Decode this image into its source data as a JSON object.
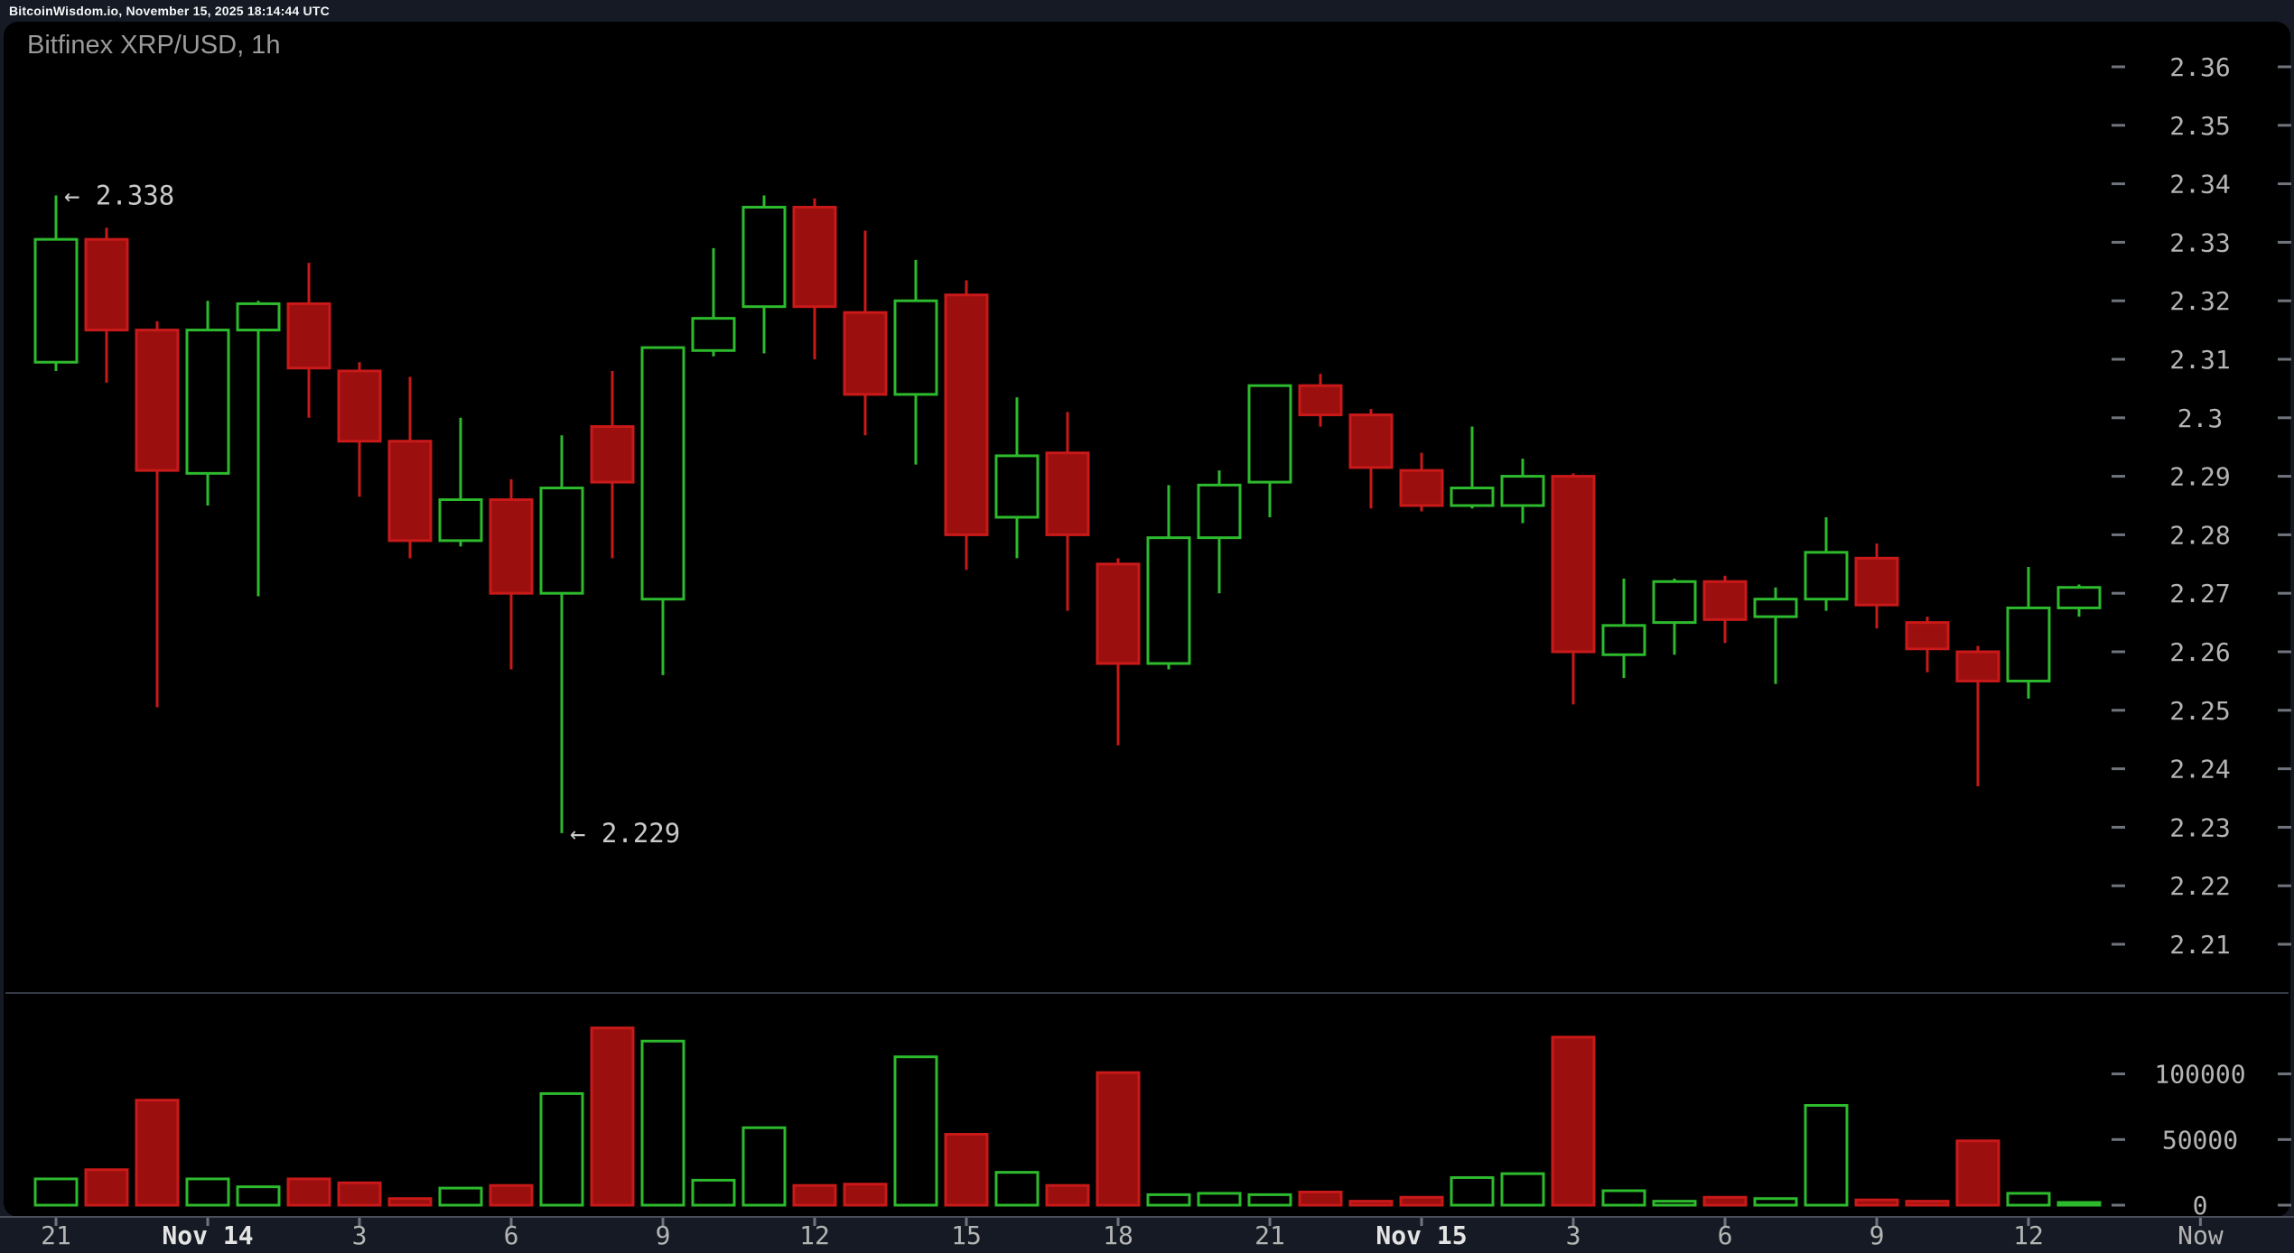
{
  "header": {
    "status_text": "BitcoinWisdom.io, November 15, 2025 18:14:44 UTC"
  },
  "chart": {
    "title": "Bitfinex XRP/USD, 1h"
  },
  "colors": {
    "page_bg": "#151a24",
    "panel_bg": "#000000",
    "green": "#2dba2d",
    "red": "#c91919",
    "red_fill": "#9b0f0f",
    "axis_text": "#b4b4b4",
    "axis_text_strong": "#e4e4e4",
    "tick_dash": "#70747c",
    "annotation_text": "#c9c9c9",
    "strip_line": "#4a4e58",
    "pane_divider": "#343943"
  },
  "chart_data": {
    "type": "candlestick+volume",
    "title": "Bitfinex XRP/USD, 1h",
    "interval": "1h",
    "price_axis": {
      "range": [
        2.21,
        2.36
      ],
      "ticks": [
        {
          "label": "2.36",
          "value": 2.36
        },
        {
          "label": "2.35",
          "value": 2.35
        },
        {
          "label": "2.34",
          "value": 2.34
        },
        {
          "label": "2.33",
          "value": 2.33
        },
        {
          "label": "2.32",
          "value": 2.32
        },
        {
          "label": "2.31",
          "value": 2.31
        },
        {
          "label": "2.3",
          "value": 2.3
        },
        {
          "label": "2.29",
          "value": 2.29
        },
        {
          "label": "2.28",
          "value": 2.28
        },
        {
          "label": "2.27",
          "value": 2.27
        },
        {
          "label": "2.26",
          "value": 2.26
        },
        {
          "label": "2.25",
          "value": 2.25
        },
        {
          "label": "2.24",
          "value": 2.24
        },
        {
          "label": "2.23",
          "value": 2.23
        },
        {
          "label": "2.22",
          "value": 2.22
        },
        {
          "label": "2.21",
          "value": 2.21
        }
      ]
    },
    "volume_axis": {
      "range": [
        0,
        100000
      ],
      "ticks": [
        {
          "label": "100000",
          "value": 100000
        },
        {
          "label": "50000",
          "value": 50000
        },
        {
          "label": "0",
          "value": 0
        }
      ]
    },
    "time_axis": {
      "ticks": [
        {
          "label": "21",
          "i": 0
        },
        {
          "label": "Nov 14",
          "i": 3,
          "strong": true
        },
        {
          "label": "3",
          "i": 6
        },
        {
          "label": "6",
          "i": 9
        },
        {
          "label": "9",
          "i": 12
        },
        {
          "label": "12",
          "i": 15
        },
        {
          "label": "15",
          "i": 18
        },
        {
          "label": "18",
          "i": 21
        },
        {
          "label": "21",
          "i": 24
        },
        {
          "label": "Nov 15",
          "i": 27,
          "strong": true
        },
        {
          "label": "3",
          "i": 30
        },
        {
          "label": "6",
          "i": 33
        },
        {
          "label": "9",
          "i": 36
        },
        {
          "label": "12",
          "i": 39
        },
        {
          "label": "Now",
          "i": 42.4
        }
      ]
    },
    "annotations": [
      {
        "text": "← 2.338",
        "price": 2.338,
        "candle": 0
      },
      {
        "text": "← 2.229",
        "price": 2.229,
        "candle": 10
      }
    ],
    "candles": [
      {
        "o": 2.3095,
        "h": 2.338,
        "l": 2.308,
        "c": 2.3305,
        "v": 20000
      },
      {
        "o": 2.3305,
        "h": 2.3325,
        "l": 2.306,
        "c": 2.315,
        "v": 27000
      },
      {
        "o": 2.315,
        "h": 2.3165,
        "l": 2.2505,
        "c": 2.291,
        "v": 80000
      },
      {
        "o": 2.2905,
        "h": 2.32,
        "l": 2.285,
        "c": 2.315,
        "v": 20000
      },
      {
        "o": 2.315,
        "h": 2.32,
        "l": 2.2695,
        "c": 2.3195,
        "v": 14000
      },
      {
        "o": 2.3195,
        "h": 2.3265,
        "l": 2.3,
        "c": 2.3085,
        "v": 20000
      },
      {
        "o": 2.308,
        "h": 2.3095,
        "l": 2.2865,
        "c": 2.296,
        "v": 17000
      },
      {
        "o": 2.296,
        "h": 2.307,
        "l": 2.276,
        "c": 2.279,
        "v": 5000
      },
      {
        "o": 2.279,
        "h": 2.3,
        "l": 2.278,
        "c": 2.286,
        "v": 13000
      },
      {
        "o": 2.286,
        "h": 2.2895,
        "l": 2.257,
        "c": 2.27,
        "v": 15000
      },
      {
        "o": 2.27,
        "h": 2.297,
        "l": 2.229,
        "c": 2.288,
        "v": 85000
      },
      {
        "o": 2.2985,
        "h": 2.308,
        "l": 2.276,
        "c": 2.289,
        "v": 135000
      },
      {
        "o": 2.269,
        "h": 2.312,
        "l": 2.256,
        "c": 2.312,
        "v": 125000
      },
      {
        "o": 2.3115,
        "h": 2.329,
        "l": 2.3105,
        "c": 2.317,
        "v": 19000
      },
      {
        "o": 2.319,
        "h": 2.338,
        "l": 2.311,
        "c": 2.336,
        "v": 59000
      },
      {
        "o": 2.336,
        "h": 2.3375,
        "l": 2.31,
        "c": 2.319,
        "v": 15000
      },
      {
        "o": 2.318,
        "h": 2.332,
        "l": 2.297,
        "c": 2.304,
        "v": 16000
      },
      {
        "o": 2.304,
        "h": 2.327,
        "l": 2.292,
        "c": 2.32,
        "v": 113000
      },
      {
        "o": 2.321,
        "h": 2.3235,
        "l": 2.274,
        "c": 2.28,
        "v": 54000
      },
      {
        "o": 2.283,
        "h": 2.3035,
        "l": 2.276,
        "c": 2.2935,
        "v": 25000
      },
      {
        "o": 2.294,
        "h": 2.301,
        "l": 2.267,
        "c": 2.28,
        "v": 15000
      },
      {
        "o": 2.275,
        "h": 2.276,
        "l": 2.244,
        "c": 2.258,
        "v": 101000
      },
      {
        "o": 2.258,
        "h": 2.2885,
        "l": 2.257,
        "c": 2.2795,
        "v": 8000
      },
      {
        "o": 2.2795,
        "h": 2.291,
        "l": 2.27,
        "c": 2.2885,
        "v": 9000
      },
      {
        "o": 2.289,
        "h": 2.3055,
        "l": 2.283,
        "c": 2.3055,
        "v": 8000
      },
      {
        "o": 2.3055,
        "h": 2.3075,
        "l": 2.2985,
        "c": 2.3005,
        "v": 10000
      },
      {
        "o": 2.3005,
        "h": 2.3015,
        "l": 2.2845,
        "c": 2.2915,
        "v": 3000
      },
      {
        "o": 2.291,
        "h": 2.294,
        "l": 2.284,
        "c": 2.285,
        "v": 6000
      },
      {
        "o": 2.285,
        "h": 2.2985,
        "l": 2.2845,
        "c": 2.288,
        "v": 21000
      },
      {
        "o": 2.285,
        "h": 2.293,
        "l": 2.282,
        "c": 2.29,
        "v": 24000
      },
      {
        "o": 2.29,
        "h": 2.2905,
        "l": 2.251,
        "c": 2.26,
        "v": 128000
      },
      {
        "o": 2.2595,
        "h": 2.2725,
        "l": 2.2555,
        "c": 2.2645,
        "v": 11000
      },
      {
        "o": 2.265,
        "h": 2.2725,
        "l": 2.2595,
        "c": 2.272,
        "v": 3000
      },
      {
        "o": 2.272,
        "h": 2.273,
        "l": 2.2615,
        "c": 2.2655,
        "v": 6000
      },
      {
        "o": 2.266,
        "h": 2.271,
        "l": 2.2545,
        "c": 2.269,
        "v": 5000
      },
      {
        "o": 2.269,
        "h": 2.283,
        "l": 2.267,
        "c": 2.277,
        "v": 76000
      },
      {
        "o": 2.276,
        "h": 2.2785,
        "l": 2.264,
        "c": 2.268,
        "v": 4000
      },
      {
        "o": 2.265,
        "h": 2.266,
        "l": 2.2565,
        "c": 2.2605,
        "v": 3000
      },
      {
        "o": 2.26,
        "h": 2.261,
        "l": 2.237,
        "c": 2.255,
        "v": 49000
      },
      {
        "o": 2.255,
        "h": 2.2745,
        "l": 2.252,
        "c": 2.2675,
        "v": 9000
      },
      {
        "o": 2.2675,
        "h": 2.2715,
        "l": 2.266,
        "c": 2.271,
        "v": 1500
      }
    ]
  }
}
